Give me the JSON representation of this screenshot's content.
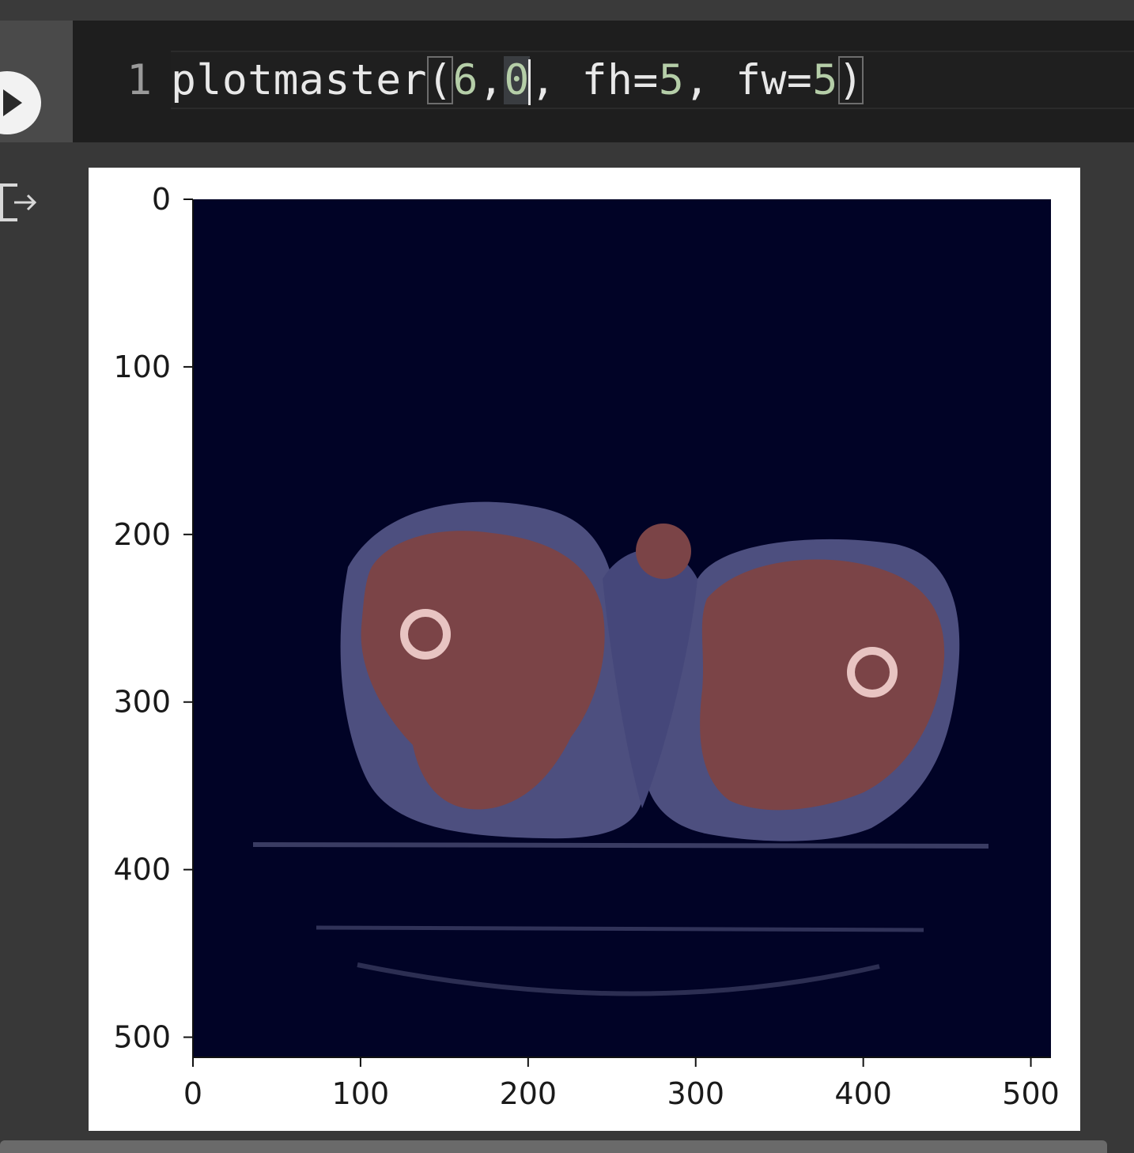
{
  "cell": {
    "line_number": "1",
    "code": {
      "function_name": "plotmaster",
      "open_paren": "(",
      "arg1": "6",
      "comma1": ",",
      "arg2": "0",
      "comma2": ",",
      "fh_key": " fh=",
      "fh_value": "5",
      "comma3": ",",
      "fw_key": " fw=",
      "fw_value": "5",
      "close_paren": ")"
    },
    "run_icon": "play-icon",
    "output_icon": "output-arrow-icon"
  },
  "chart_data": {
    "type": "image",
    "description_free": true,
    "x_ticks": [
      "0",
      "100",
      "200",
      "300",
      "400",
      "500"
    ],
    "x_tick_values": [
      0,
      100,
      200,
      300,
      400,
      500
    ],
    "y_ticks": [
      "0",
      "100",
      "200",
      "300",
      "400",
      "500"
    ],
    "y_tick_values": [
      0,
      100,
      200,
      300,
      400,
      500
    ],
    "xlim": [
      0,
      512
    ],
    "ylim": [
      512,
      0
    ],
    "colors": {
      "background": "#010326",
      "soft_tissue": "#4d4f7f",
      "muscle": "#7b4447",
      "bone_ring": "#e8c4c2",
      "table": "#3a3c63"
    }
  }
}
